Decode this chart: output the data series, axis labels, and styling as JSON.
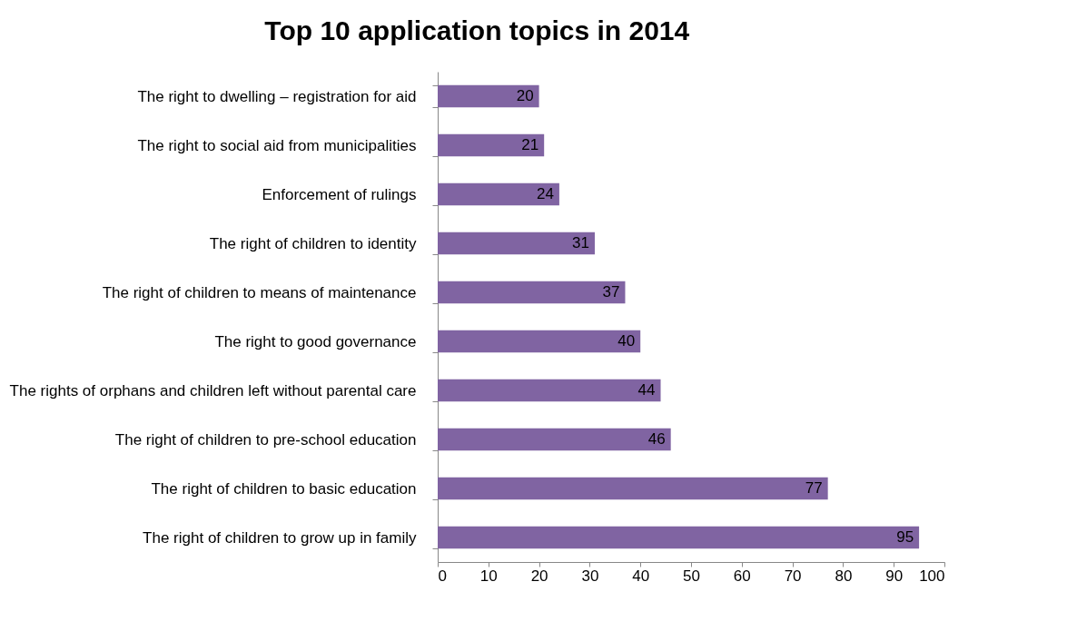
{
  "chart_data": {
    "type": "bar",
    "orientation": "horizontal",
    "title": "Top 10 application topics in 2014",
    "categories": [
      "The right to dwelling – registration for aid",
      "The right to social aid from municipalities",
      "Enforcement of rulings",
      "The right of children to identity",
      "The right of children to means of maintenance",
      "The right to good governance",
      "The rights of orphans and children left without parental care",
      "The right of children to pre-school education",
      "The right of children to basic education",
      "The right of children to grow up in family"
    ],
    "values": [
      20,
      21,
      24,
      31,
      37,
      40,
      44,
      46,
      77,
      95
    ],
    "color": "#8064a2",
    "xlim": [
      0,
      100
    ],
    "xticks": [
      0,
      10,
      20,
      30,
      40,
      50,
      60,
      70,
      80,
      90,
      100
    ],
    "data_labels": true,
    "grid": false
  }
}
